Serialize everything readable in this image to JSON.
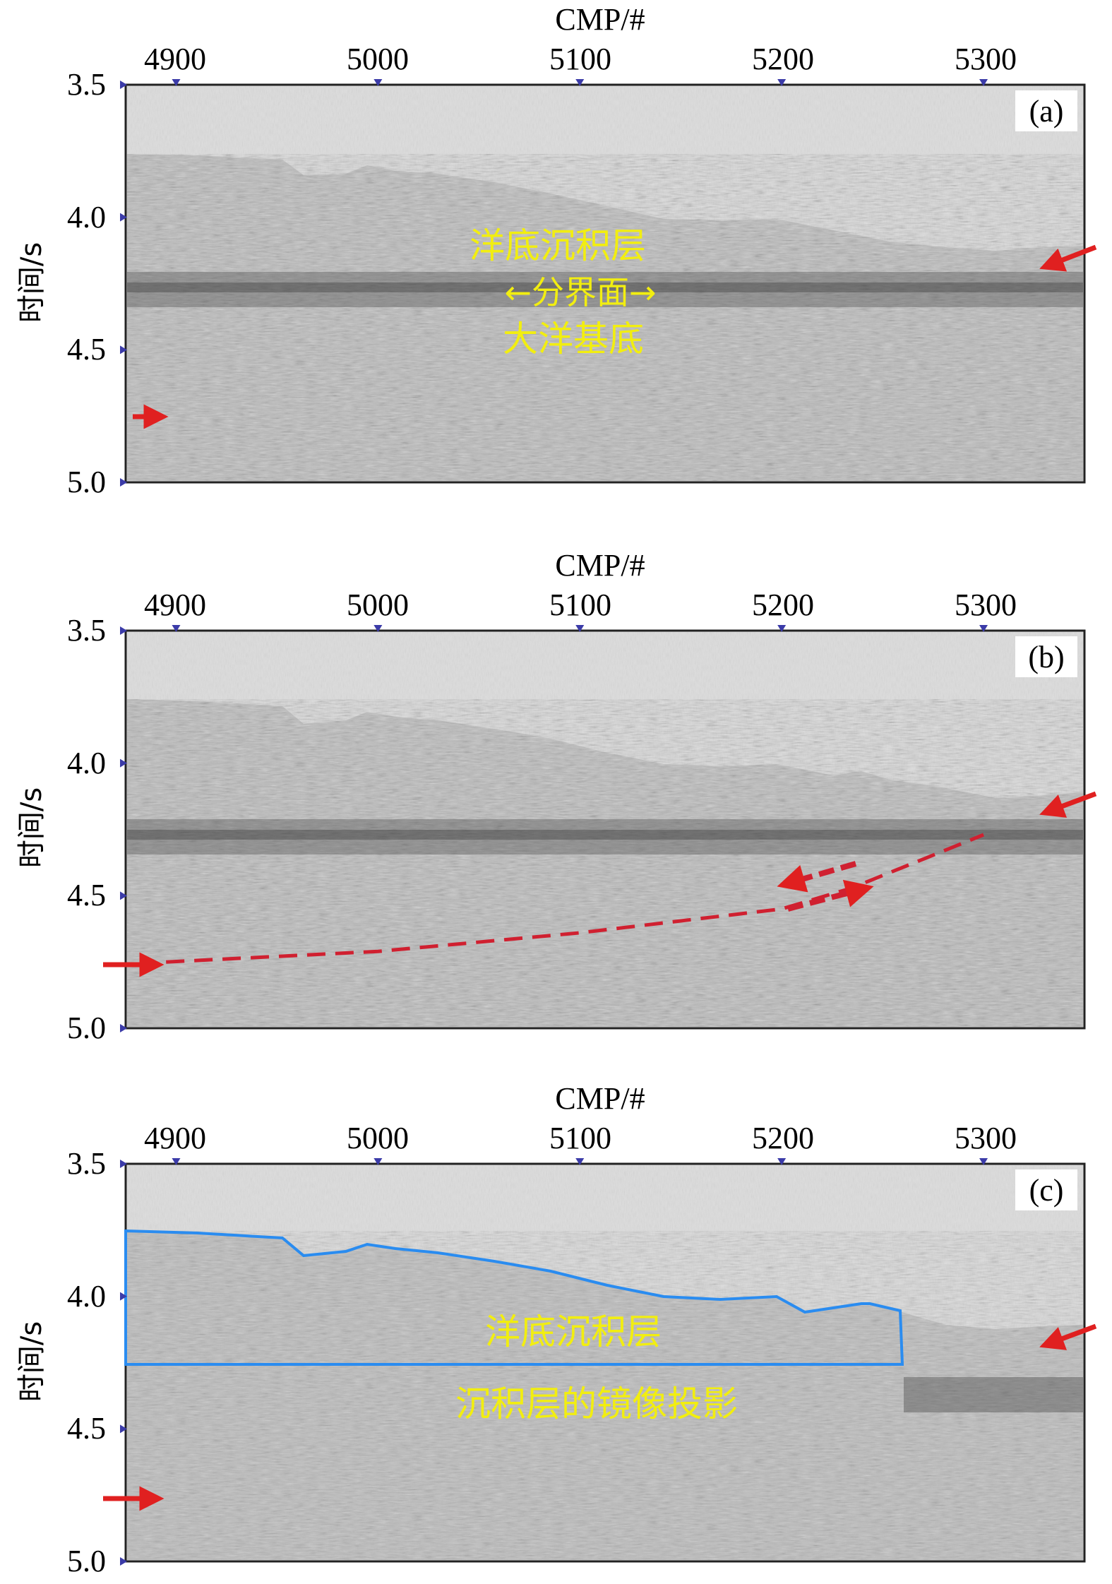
{
  "xaxis": {
    "title": "CMP/#",
    "ticks": [
      4900,
      5000,
      5100,
      5200,
      5300
    ],
    "range": [
      4875,
      5350
    ]
  },
  "yaxis": {
    "title": "时间/s",
    "ticks": [
      "3.5",
      "4.0",
      "4.5",
      "5.0"
    ],
    "range": [
      3.5,
      5.0
    ]
  },
  "panels": [
    {
      "id": "a",
      "label": "(a)",
      "annotations": [
        "洋底沉积层",
        "←分界面→",
        "大洋基底"
      ],
      "arrows": [
        {
          "side": "left",
          "time": 4.75
        },
        {
          "side": "right",
          "time": 4.15
        }
      ]
    },
    {
      "id": "b",
      "label": "(b)",
      "annotations": [],
      "arrows": [
        {
          "side": "left",
          "time": 4.75
        },
        {
          "side": "right",
          "time": 4.15
        }
      ],
      "fault_line": [
        [
          4895,
          4.75
        ],
        [
          5000,
          4.71
        ],
        [
          5100,
          4.64
        ],
        [
          5200,
          4.55
        ],
        [
          5235,
          4.47
        ],
        [
          5300,
          4.27
        ]
      ]
    },
    {
      "id": "c",
      "label": "(c)",
      "annotations": [
        "洋底沉积层",
        "沉积层的镜像投影"
      ],
      "arrows": [
        {
          "side": "left",
          "time": 4.75
        },
        {
          "side": "right",
          "time": 4.15
        }
      ],
      "blue_outline": true
    }
  ],
  "colors": {
    "background": "#dcdcdc",
    "arrow": "#e02020",
    "annotation_text": "#f2ee10",
    "blue_outline": "#2a8cf0",
    "fault": "#d02030",
    "tick_marker": "#3b3ba8"
  }
}
